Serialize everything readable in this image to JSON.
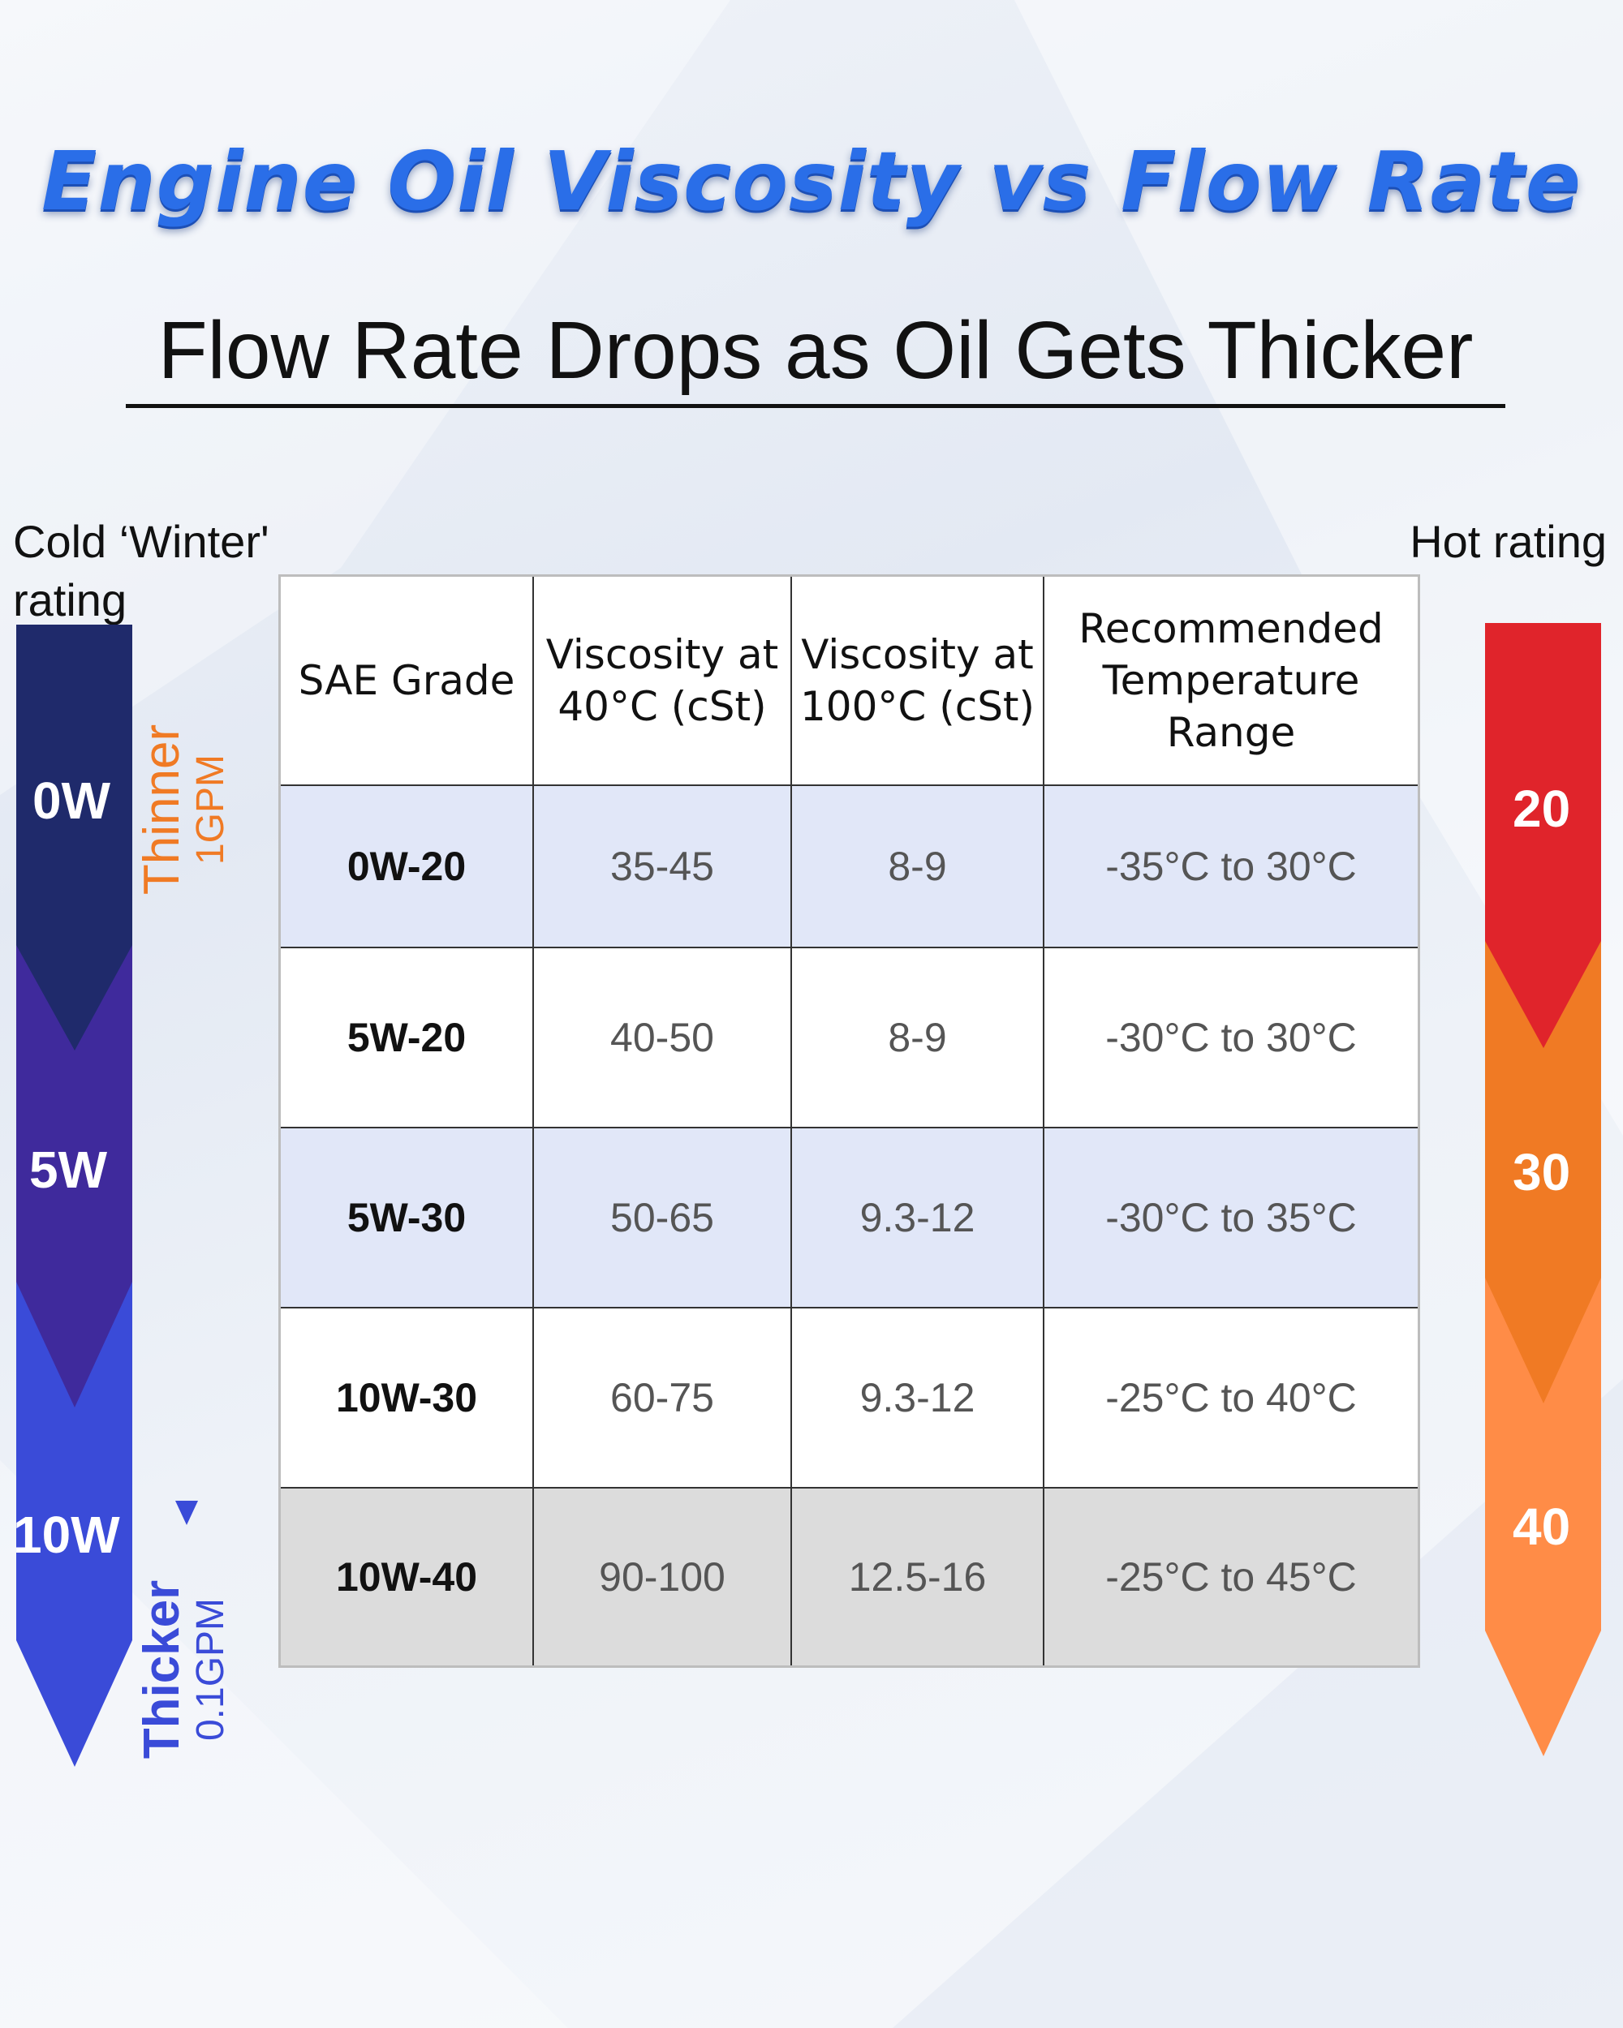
{
  "title": "Engine Oil Viscosity vs Flow Rate",
  "subtitle": "Flow Rate Drops as Oil Gets Thicker",
  "cold_rating": {
    "label": "Cold ‘Winter' rating",
    "grades": [
      "0W",
      "5W",
      "10W"
    ],
    "colors": [
      "#1f2a6b",
      "#3f2a9c",
      "#3a4bd8"
    ]
  },
  "hot_rating": {
    "label": "Hot rating",
    "grades": [
      "20",
      "30",
      "40"
    ],
    "colors": [
      "#e0242b",
      "#f07a24",
      "#ff8c47"
    ]
  },
  "flow": {
    "thin_word": "Thinner",
    "thin_rate": "1GPM",
    "thick_word": "Thicker",
    "thick_rate": "0.1GPM",
    "thin_color": "#f07a24",
    "thick_color": "#3a4bd8"
  },
  "table": {
    "headers": [
      "SAE Grade",
      "Viscosity at 40°C (cSt)",
      "Viscosity at 100°C (cSt)",
      "Recommended Temperature Range"
    ],
    "rows": [
      [
        "0W-20",
        "35-45",
        "8-9",
        "-35°C to 30°C"
      ],
      [
        "5W-20",
        "40-50",
        "8-9",
        "-30°C to 30°C"
      ],
      [
        "5W-30",
        "50-65",
        "9.3-12",
        "-30°C to 35°C"
      ],
      [
        "10W-30",
        "60-75",
        "9.3-12",
        "-25°C to 40°C"
      ],
      [
        "10W-40",
        "90-100",
        "12.5-16",
        "-25°C to 45°C"
      ]
    ]
  }
}
